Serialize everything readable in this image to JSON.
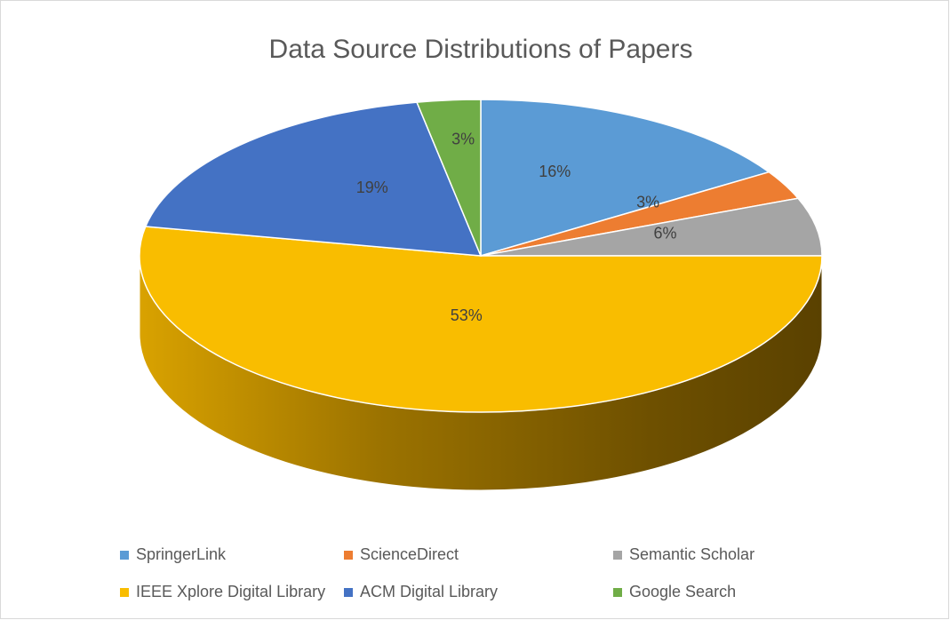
{
  "chart_data": {
    "type": "pie",
    "title": "Data Source Distributions of Papers",
    "categories": [
      "SpringerLink",
      "ScienceDirect",
      "Semantic Scholar",
      "IEEE Xplore Digital Library",
      "ACM Digital Library",
      "Google Search"
    ],
    "values": [
      16,
      3,
      6,
      53,
      19,
      3
    ],
    "value_labels": [
      "16%",
      "3%",
      "6%",
      "53%",
      "19%",
      "3%"
    ],
    "colors": [
      "#5b9bd5",
      "#ed7d31",
      "#a5a5a5",
      "#f9bd00",
      "#4472c4",
      "#70ad47"
    ],
    "legend": "bottom"
  }
}
